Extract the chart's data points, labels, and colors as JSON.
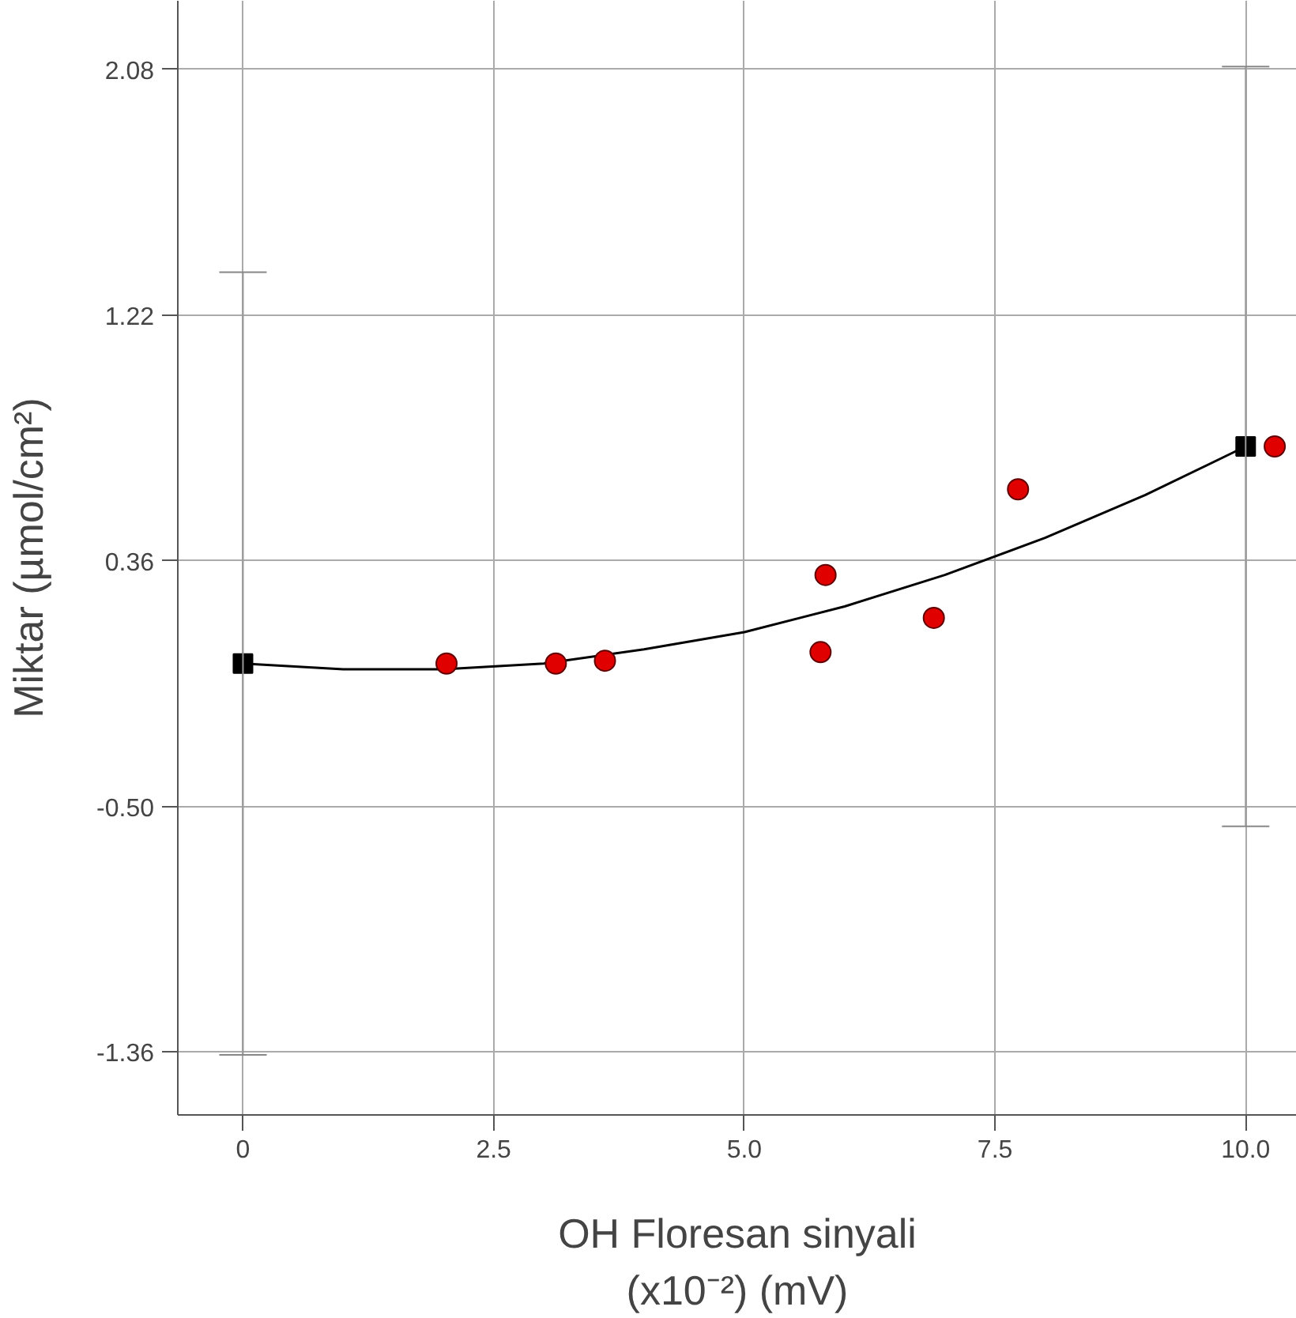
{
  "chart_data": {
    "type": "scatter",
    "xlabel": "OH Floresan sinyali\n(x10⁻²) (mV)",
    "ylabel": "Miktar (µmol/cm²)",
    "xlim": [
      -0.65,
      10.51
    ],
    "ylim": [
      -1.58,
      2.32
    ],
    "xticks": [
      0,
      {
        "value": 2.5,
        "label": "2.5"
      },
      {
        "value": 5,
        "label": "5.0"
      },
      {
        "value": 7.5,
        "label": "7.5"
      },
      {
        "value": 10,
        "label": "10.0"
      }
    ],
    "yticks": [
      {
        "value": 2.08,
        "label": "2.08"
      },
      {
        "value": 1.22,
        "label": "1.22"
      },
      {
        "value": 0.36,
        "label": "0.36"
      },
      {
        "value": -0.5,
        "label": "-0.50"
      },
      {
        "value": -1.36,
        "label": "-1.36"
      }
    ],
    "grid": true,
    "series": [
      {
        "type": "line",
        "color": "#000000",
        "line_style": "solid",
        "x": [
          0,
          1,
          2,
          3,
          4,
          5,
          6,
          7,
          8,
          9,
          10
        ],
        "values": [
          0.0,
          -0.02,
          -0.02,
          0.0,
          0.05,
          0.11,
          0.2,
          0.31,
          0.44,
          0.59,
          0.76
        ]
      },
      {
        "color": "#e00000",
        "marker": "circle",
        "x": [
          2.03,
          3.12,
          3.61,
          5.76,
          5.81,
          6.89,
          7.73,
          10.29
        ],
        "values": [
          0.0,
          0.0,
          0.01,
          0.04,
          0.31,
          0.16,
          0.61,
          0.76
        ]
      },
      {
        "color": "#000000",
        "marker": "square",
        "x": [
          0,
          10
        ],
        "values": [
          0.0,
          0.76
        ],
        "errors": [
          1.37,
          1.33
        ]
      }
    ]
  }
}
